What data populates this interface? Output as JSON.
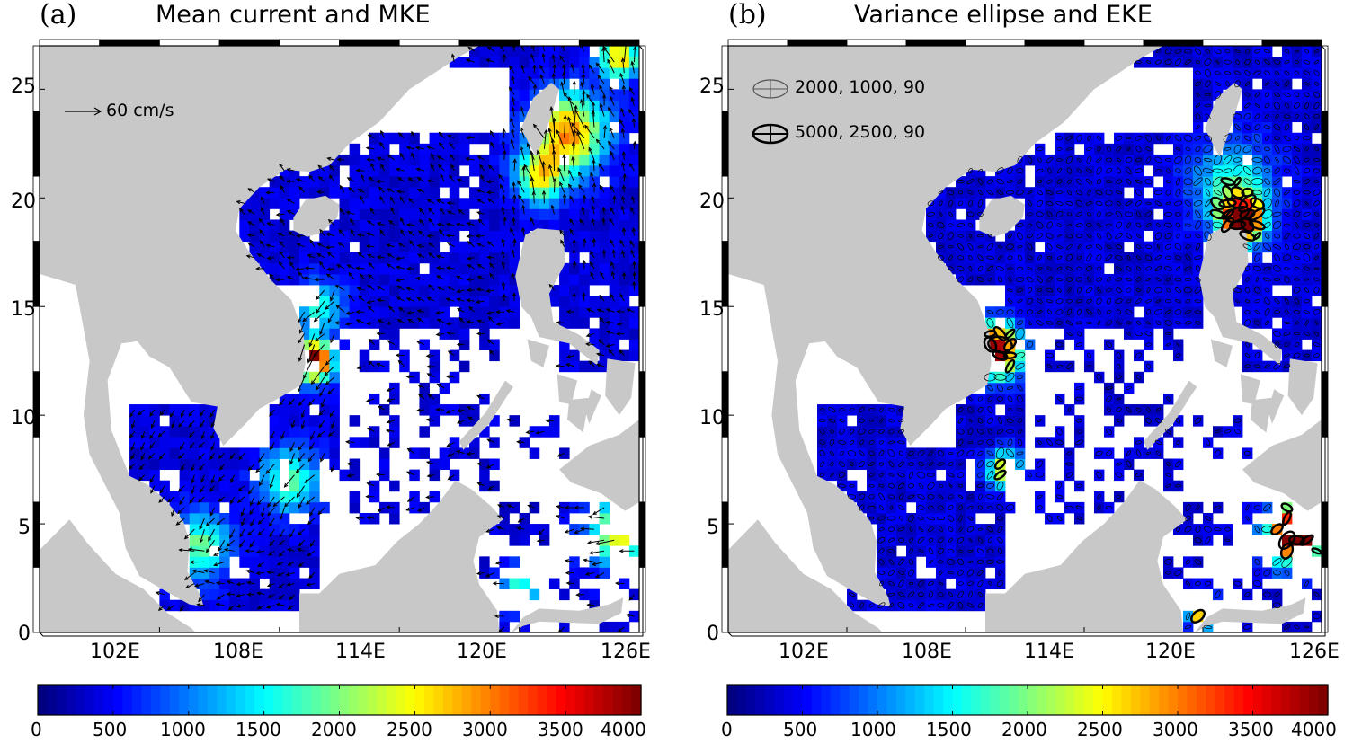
{
  "panels": [
    {
      "label": "(a)",
      "title": "Mean current and MKE",
      "legend": {
        "arrow_text": "60 cm/s"
      }
    },
    {
      "label": "(b)",
      "title": "Variance ellipse and EKE",
      "legend": {
        "ellipse_small_text": "2000, 1000, 90",
        "ellipse_large_text": "5000, 2500, 90"
      }
    }
  ],
  "map": {
    "lon_range": [
      96,
      126
    ],
    "lat_range": [
      0,
      27
    ],
    "x_ticks": [
      "102E",
      "108E",
      "114E",
      "120E",
      "126E"
    ],
    "y_ticks": [
      "0",
      "5",
      "10",
      "15",
      "20",
      "25"
    ],
    "land_color": "#c8c8c8",
    "ocean_no_data_color": "#ffffff"
  },
  "colorbar": {
    "ticks": [
      "0",
      "500",
      "1000",
      "1500",
      "2000",
      "2500",
      "3000",
      "3500",
      "4000"
    ],
    "range": [
      0,
      4000
    ],
    "colormap": "jet"
  }
}
